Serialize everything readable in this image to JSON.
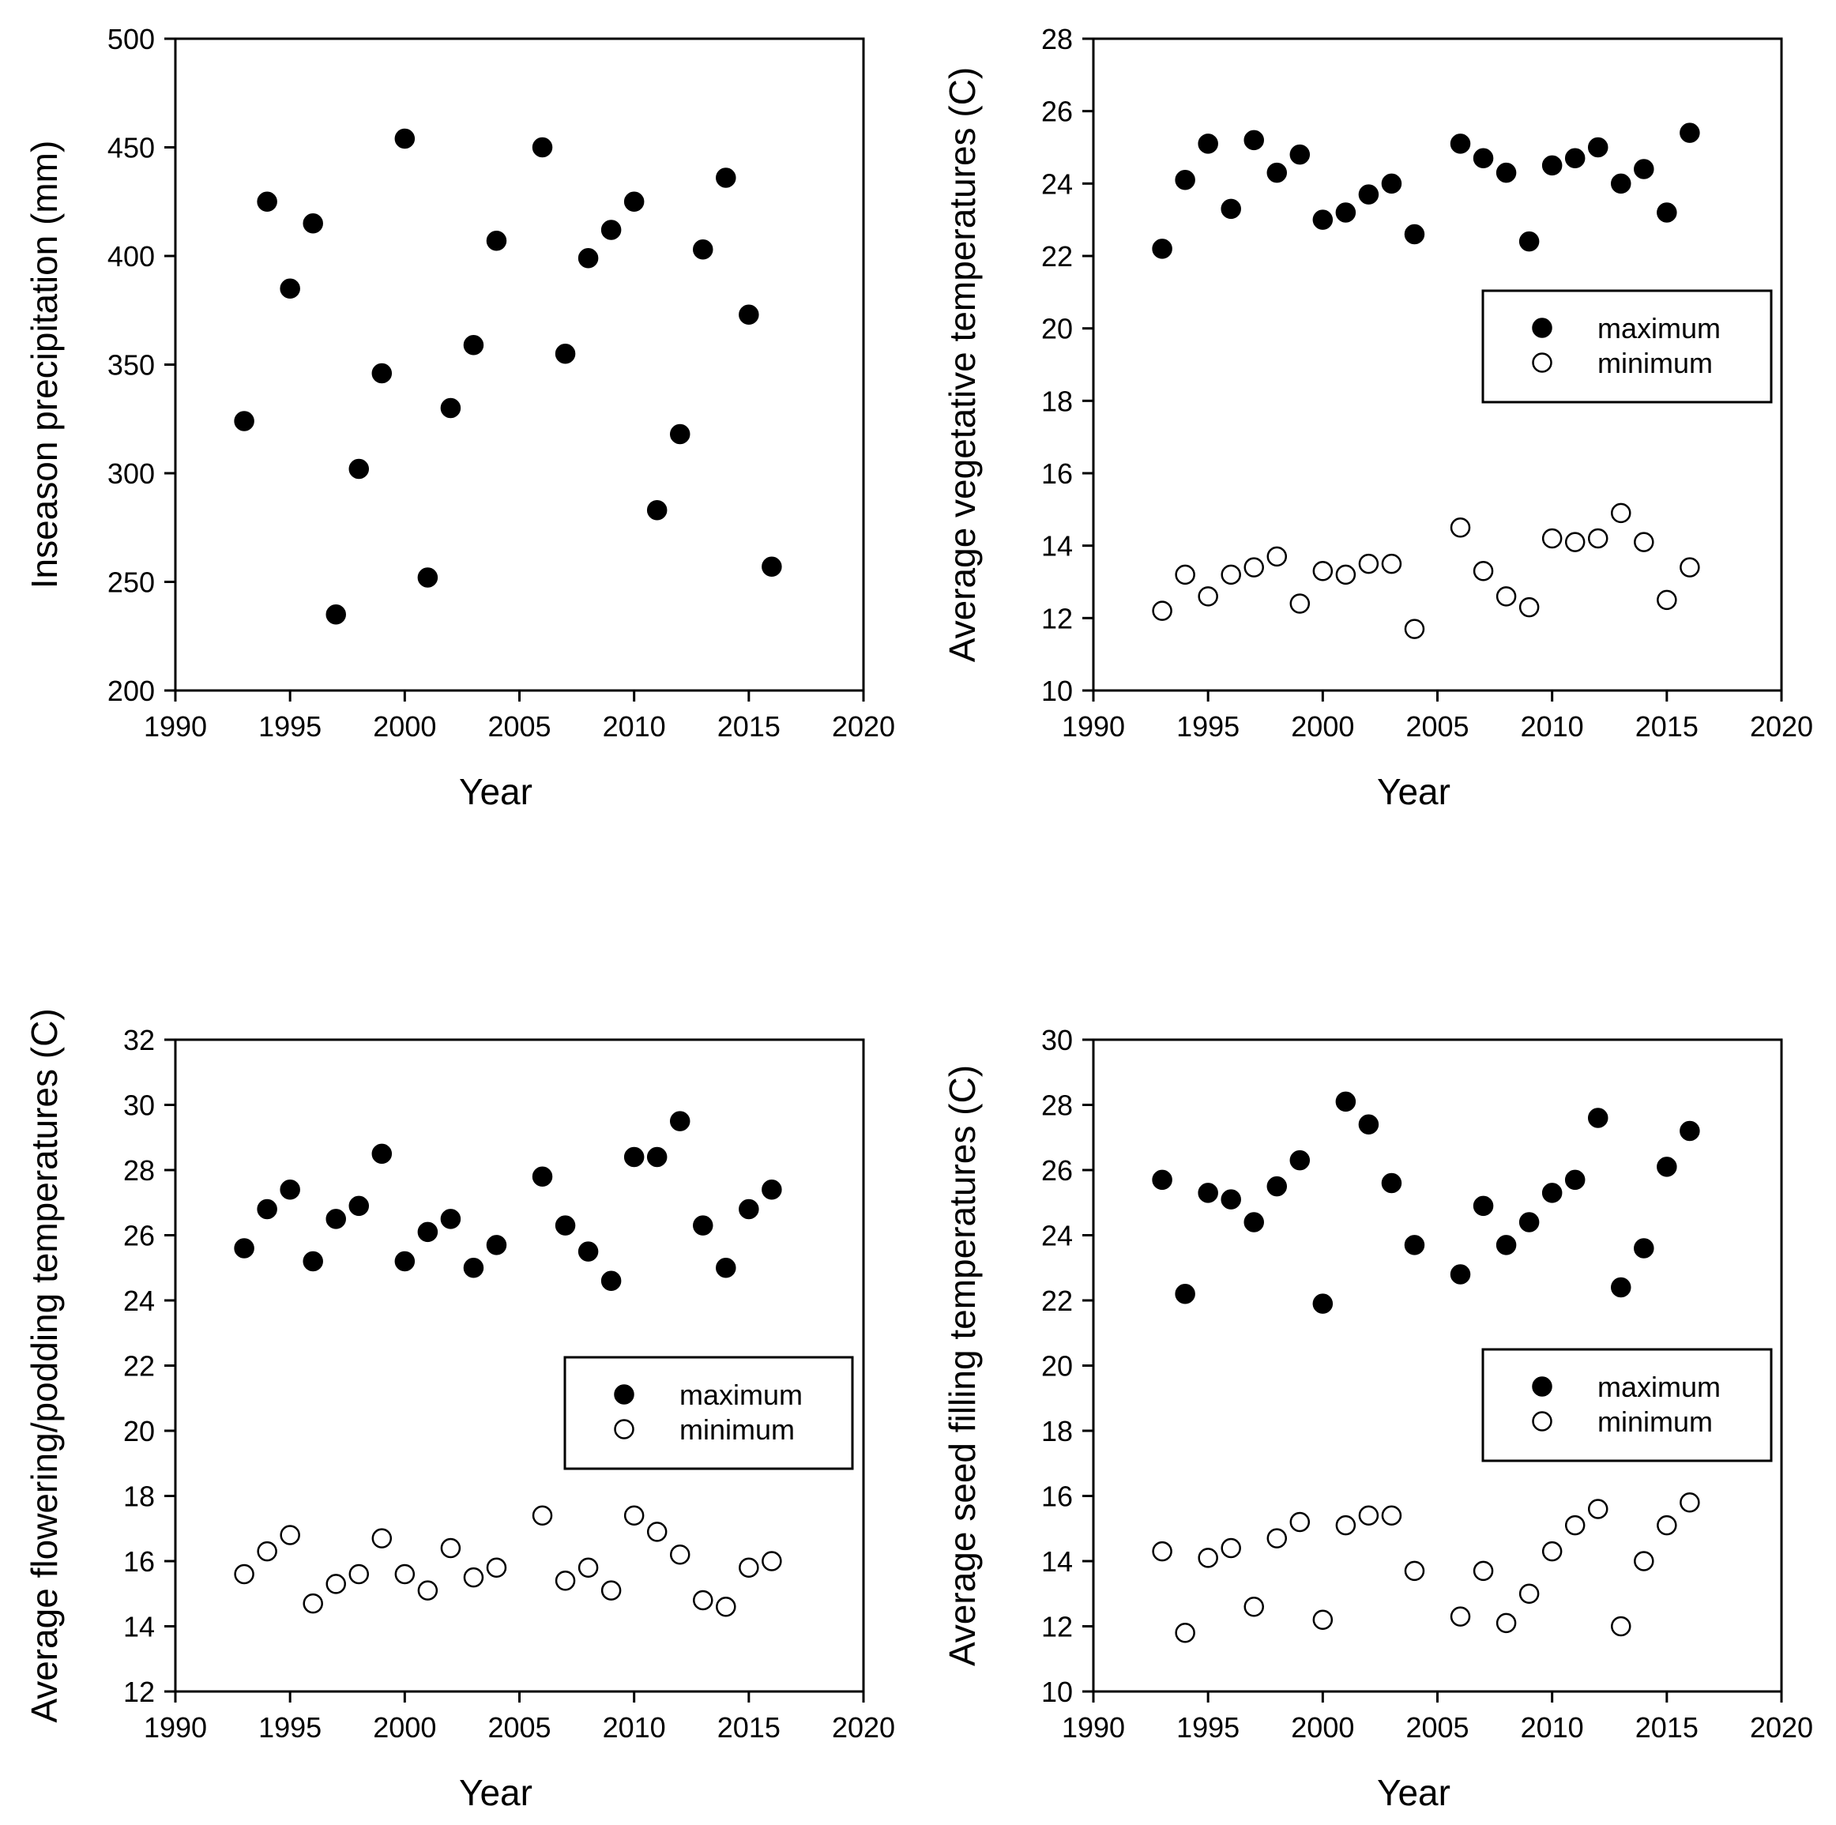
{
  "chart_data": [
    {
      "type": "scatter",
      "title": "",
      "xlabel": "Year",
      "ylabel": "Inseason precipitation (mm)",
      "xlim": [
        1990,
        2020
      ],
      "ylim": [
        200,
        500
      ],
      "xticks": [
        1990,
        1995,
        2000,
        2005,
        2010,
        2015,
        2020
      ],
      "yticks": [
        200,
        250,
        300,
        350,
        400,
        450,
        500
      ],
      "legend": null,
      "series": [
        {
          "name": "precipitation",
          "marker": "filled",
          "points": [
            [
              1993,
              324
            ],
            [
              1994,
              425
            ],
            [
              1995,
              385
            ],
            [
              1996,
              415
            ],
            [
              1997,
              235
            ],
            [
              1998,
              302
            ],
            [
              1999,
              346
            ],
            [
              2000,
              454
            ],
            [
              2001,
              252
            ],
            [
              2002,
              330
            ],
            [
              2003,
              359
            ],
            [
              2004,
              407
            ],
            [
              2006,
              450
            ],
            [
              2007,
              355
            ],
            [
              2008,
              399
            ],
            [
              2009,
              412
            ],
            [
              2010,
              425
            ],
            [
              2011,
              283
            ],
            [
              2012,
              318
            ],
            [
              2013,
              403
            ],
            [
              2014,
              436
            ],
            [
              2015,
              373
            ],
            [
              2016,
              257
            ]
          ]
        }
      ]
    },
    {
      "type": "scatter",
      "title": "",
      "xlabel": "Year",
      "ylabel": "Average vegetative temperatures (C)",
      "xlim": [
        1990,
        2020
      ],
      "ylim": [
        10,
        28
      ],
      "xticks": [
        1990,
        1995,
        2000,
        2005,
        2010,
        2015,
        2020
      ],
      "yticks": [
        10,
        12,
        14,
        16,
        18,
        20,
        22,
        24,
        26,
        28
      ],
      "legend": "right-middle",
      "series": [
        {
          "name": "maximum",
          "marker": "filled",
          "points": [
            [
              1993,
              22.2
            ],
            [
              1994,
              24.1
            ],
            [
              1995,
              25.1
            ],
            [
              1996,
              23.3
            ],
            [
              1997,
              25.2
            ],
            [
              1998,
              24.3
            ],
            [
              1999,
              24.8
            ],
            [
              2000,
              23.0
            ],
            [
              2001,
              23.2
            ],
            [
              2002,
              23.7
            ],
            [
              2003,
              24.0
            ],
            [
              2004,
              22.6
            ],
            [
              2006,
              25.1
            ],
            [
              2007,
              24.7
            ],
            [
              2008,
              24.3
            ],
            [
              2009,
              22.4
            ],
            [
              2010,
              24.5
            ],
            [
              2011,
              24.7
            ],
            [
              2012,
              25.0
            ],
            [
              2013,
              24.0
            ],
            [
              2014,
              24.4
            ],
            [
              2015,
              23.2
            ],
            [
              2016,
              25.4
            ]
          ]
        },
        {
          "name": "minimum",
          "marker": "open",
          "points": [
            [
              1993,
              12.2
            ],
            [
              1994,
              13.2
            ],
            [
              1995,
              12.6
            ],
            [
              1996,
              13.2
            ],
            [
              1997,
              13.4
            ],
            [
              1998,
              13.7
            ],
            [
              1999,
              12.4
            ],
            [
              2000,
              13.3
            ],
            [
              2001,
              13.2
            ],
            [
              2002,
              13.5
            ],
            [
              2003,
              13.5
            ],
            [
              2004,
              11.7
            ],
            [
              2006,
              14.5
            ],
            [
              2007,
              13.3
            ],
            [
              2008,
              12.6
            ],
            [
              2009,
              12.3
            ],
            [
              2010,
              14.2
            ],
            [
              2011,
              14.1
            ],
            [
              2012,
              14.2
            ],
            [
              2013,
              14.9
            ],
            [
              2014,
              14.1
            ],
            [
              2015,
              12.5
            ],
            [
              2016,
              13.4
            ]
          ]
        }
      ]
    },
    {
      "type": "scatter",
      "title": "",
      "xlabel": "Year",
      "ylabel": "Average flowering/podding temperatures (C)",
      "xlim": [
        1990,
        2020
      ],
      "ylim": [
        12,
        32
      ],
      "xticks": [
        1990,
        1995,
        2000,
        2005,
        2010,
        2015,
        2020
      ],
      "yticks": [
        12,
        14,
        16,
        18,
        20,
        22,
        24,
        26,
        28,
        30,
        32
      ],
      "legend": "right-middle",
      "series": [
        {
          "name": "maximum",
          "marker": "filled",
          "points": [
            [
              1993,
              25.6
            ],
            [
              1994,
              26.8
            ],
            [
              1995,
              27.4
            ],
            [
              1996,
              25.2
            ],
            [
              1997,
              26.5
            ],
            [
              1998,
              26.9
            ],
            [
              1999,
              28.5
            ],
            [
              2000,
              25.2
            ],
            [
              2001,
              26.1
            ],
            [
              2002,
              26.5
            ],
            [
              2003,
              25.0
            ],
            [
              2004,
              25.7
            ],
            [
              2006,
              27.8
            ],
            [
              2007,
              26.3
            ],
            [
              2008,
              25.5
            ],
            [
              2009,
              24.6
            ],
            [
              2010,
              28.4
            ],
            [
              2011,
              28.4
            ],
            [
              2012,
              29.5
            ],
            [
              2013,
              26.3
            ],
            [
              2014,
              25.0
            ],
            [
              2015,
              26.8
            ],
            [
              2016,
              27.4
            ]
          ]
        },
        {
          "name": "minimum",
          "marker": "open",
          "points": [
            [
              1993,
              15.6
            ],
            [
              1994,
              16.3
            ],
            [
              1995,
              16.8
            ],
            [
              1996,
              14.7
            ],
            [
              1997,
              15.3
            ],
            [
              1998,
              15.6
            ],
            [
              1999,
              16.7
            ],
            [
              2000,
              15.6
            ],
            [
              2001,
              15.1
            ],
            [
              2002,
              16.4
            ],
            [
              2003,
              15.5
            ],
            [
              2004,
              15.8
            ],
            [
              2006,
              17.4
            ],
            [
              2007,
              15.4
            ],
            [
              2008,
              15.8
            ],
            [
              2009,
              15.1
            ],
            [
              2010,
              17.4
            ],
            [
              2011,
              16.9
            ],
            [
              2012,
              16.2
            ],
            [
              2013,
              14.8
            ],
            [
              2014,
              14.6
            ],
            [
              2015,
              15.8
            ],
            [
              2016,
              16.0
            ]
          ]
        }
      ]
    },
    {
      "type": "scatter",
      "title": "",
      "xlabel": "Year",
      "ylabel": "Average seed filling temperatures (C)",
      "xlim": [
        1990,
        2020
      ],
      "ylim": [
        10,
        30
      ],
      "xticks": [
        1990,
        1995,
        2000,
        2005,
        2010,
        2015,
        2020
      ],
      "yticks": [
        10,
        12,
        14,
        16,
        18,
        20,
        22,
        24,
        26,
        28,
        30
      ],
      "legend": "right-middle",
      "series": [
        {
          "name": "maximum",
          "marker": "filled",
          "points": [
            [
              1993,
              25.7
            ],
            [
              1994,
              22.2
            ],
            [
              1995,
              25.3
            ],
            [
              1996,
              25.1
            ],
            [
              1997,
              24.4
            ],
            [
              1998,
              25.5
            ],
            [
              1999,
              26.3
            ],
            [
              2000,
              21.9
            ],
            [
              2001,
              28.1
            ],
            [
              2002,
              27.4
            ],
            [
              2003,
              25.6
            ],
            [
              2004,
              23.7
            ],
            [
              2006,
              22.8
            ],
            [
              2007,
              24.9
            ],
            [
              2008,
              23.7
            ],
            [
              2009,
              24.4
            ],
            [
              2010,
              25.3
            ],
            [
              2011,
              25.7
            ],
            [
              2012,
              27.6
            ],
            [
              2013,
              22.4
            ],
            [
              2014,
              23.6
            ],
            [
              2015,
              26.1
            ],
            [
              2016,
              27.2
            ]
          ]
        },
        {
          "name": "minimum",
          "marker": "open",
          "points": [
            [
              1993,
              14.3
            ],
            [
              1994,
              11.8
            ],
            [
              1995,
              14.1
            ],
            [
              1996,
              14.4
            ],
            [
              1997,
              12.6
            ],
            [
              1998,
              14.7
            ],
            [
              1999,
              15.2
            ],
            [
              2000,
              12.2
            ],
            [
              2001,
              15.1
            ],
            [
              2002,
              15.4
            ],
            [
              2003,
              15.4
            ],
            [
              2004,
              13.7
            ],
            [
              2006,
              12.3
            ],
            [
              2007,
              13.7
            ],
            [
              2008,
              12.1
            ],
            [
              2009,
              13.0
            ],
            [
              2010,
              14.3
            ],
            [
              2011,
              15.1
            ],
            [
              2012,
              15.6
            ],
            [
              2013,
              12.0
            ],
            [
              2014,
              14.0
            ],
            [
              2015,
              15.1
            ],
            [
              2016,
              15.8
            ]
          ]
        }
      ]
    }
  ]
}
